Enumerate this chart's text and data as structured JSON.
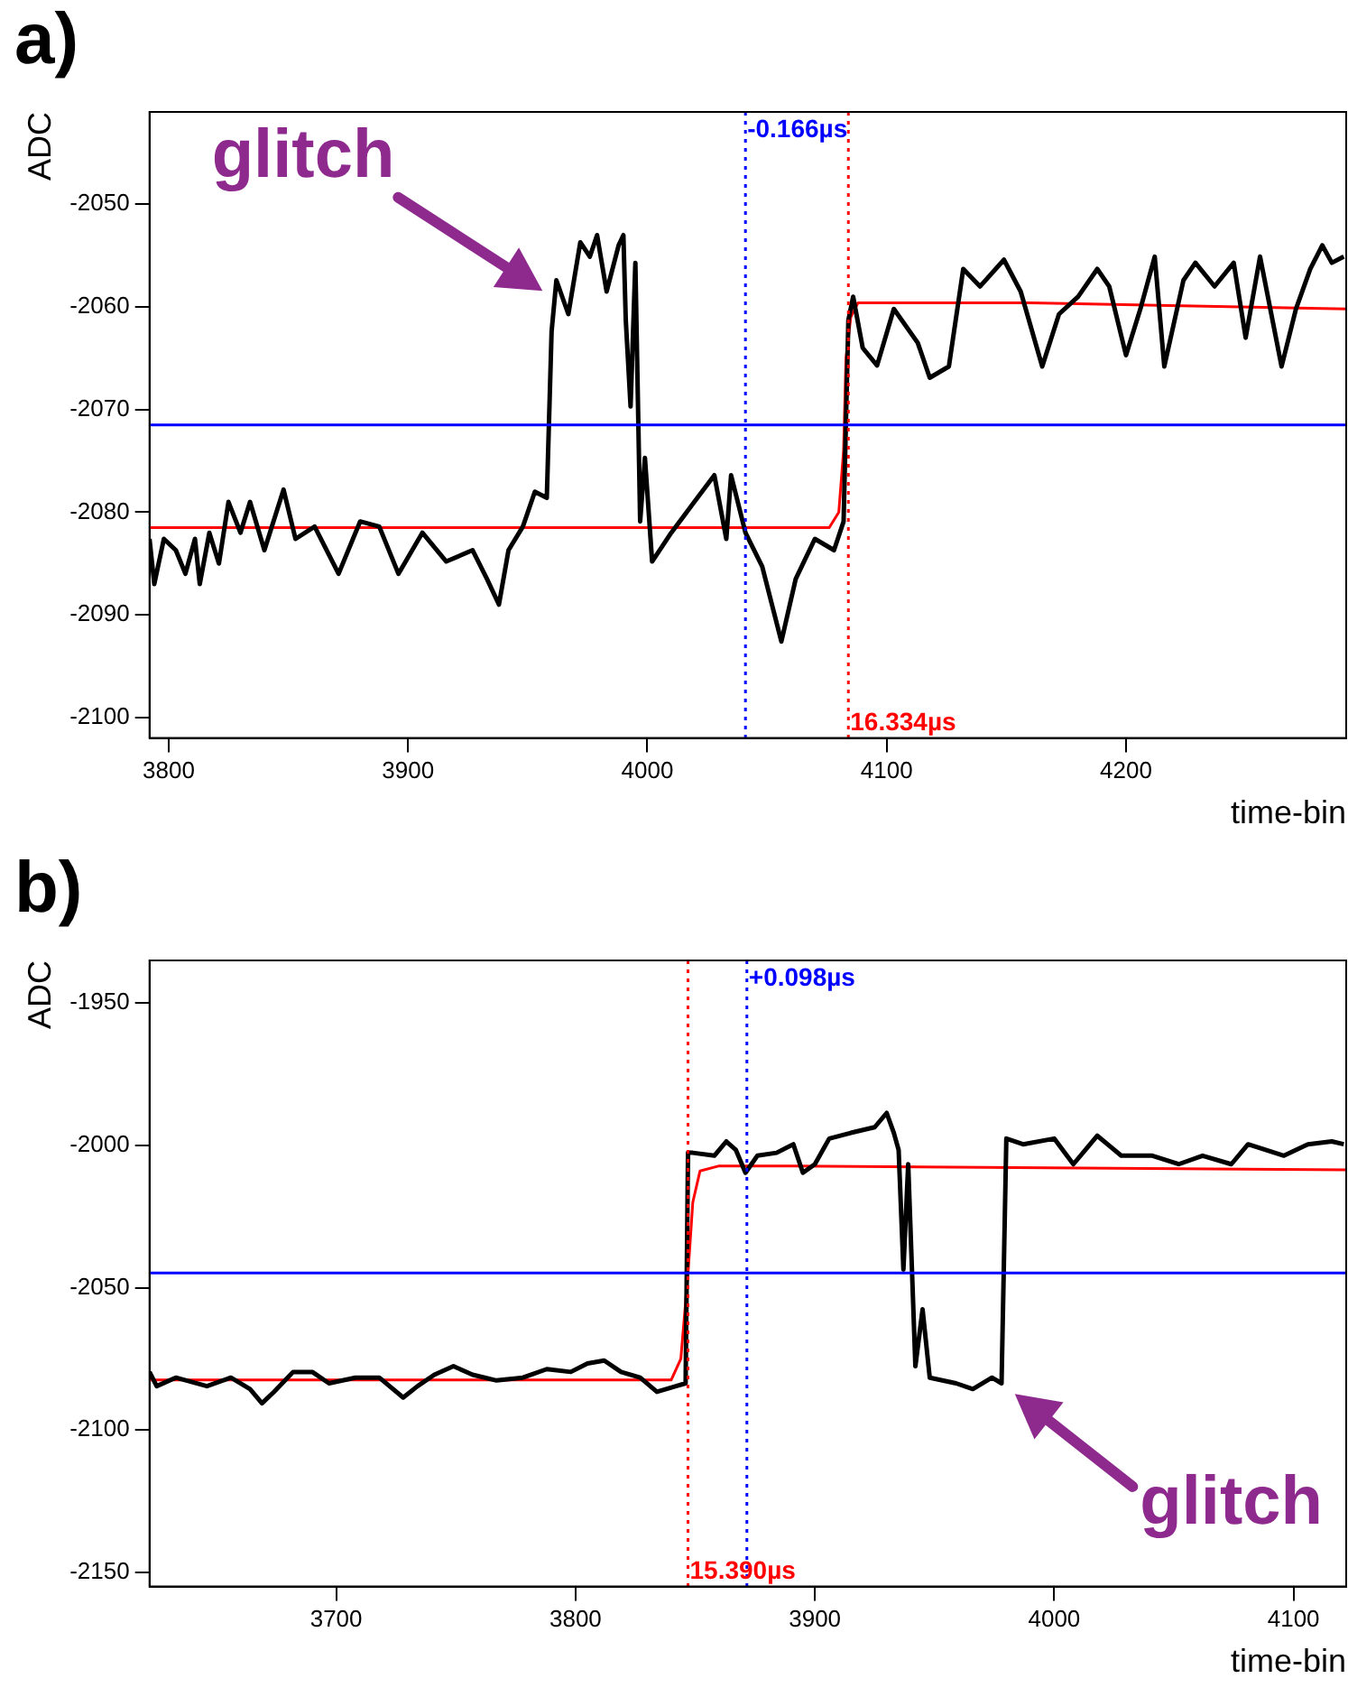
{
  "chart_data": [
    {
      "type": "line",
      "title": "a)",
      "xlabel": "time-bin",
      "ylabel": "ADC",
      "xlim": [
        3792,
        4292
      ],
      "ylim": [
        -2102,
        -2041
      ],
      "xticks": [
        3800,
        3900,
        4000,
        4100,
        4200
      ],
      "yticks": [
        -2050,
        -2060,
        -2070,
        -2080,
        -2090,
        -2100
      ],
      "grid": false,
      "legend": false,
      "marker": "none",
      "series": [
        {
          "color": "#000000",
          "x": [
            3792,
            3794,
            3798,
            3803,
            3807,
            3811,
            3813,
            3817,
            3821,
            3825,
            3830,
            3834,
            3840,
            3848,
            3853,
            3861,
            3871,
            3880,
            3888,
            3896,
            3906,
            3916,
            3927,
            3933,
            3938,
            3942,
            3948,
            3953,
            3958,
            3960,
            3962,
            3967,
            3972,
            3976,
            3979,
            3983,
            3988,
            3990,
            3991,
            3993,
            3995,
            3997,
            3999,
            4002,
            4010,
            4019,
            4028,
            4033,
            4035,
            4041,
            4048,
            4056,
            4062,
            4070,
            4078,
            4082,
            4084,
            4086,
            4090,
            4096,
            4103,
            4113,
            4118,
            4126,
            4132,
            4139,
            4149,
            4156,
            4165,
            4172,
            4180,
            4188,
            4193,
            4200,
            4206,
            4212,
            4216,
            4224,
            4229,
            4237,
            4245,
            4250,
            4256,
            4265,
            4271,
            4277,
            4282,
            4286,
            4291
          ],
          "values": [
            -2082.6,
            -2087,
            -2082.6,
            -2083.7,
            -2086,
            -2082.6,
            -2087,
            -2082,
            -2085,
            -2079,
            -2082,
            -2079,
            -2083.7,
            -2077.8,
            -2082.6,
            -2081.4,
            -2086,
            -2080.9,
            -2081.4,
            -2086,
            -2082,
            -2084.8,
            -2083.7,
            -2086.5,
            -2089,
            -2083.7,
            -2081.4,
            -2078,
            -2078.6,
            -2062.4,
            -2057.4,
            -2060.7,
            -2053.7,
            -2055.1,
            -2053,
            -2058.5,
            -2054,
            -2053,
            -2061.3,
            -2069.7,
            -2055.7,
            -2080.9,
            -2074.7,
            -2084.8,
            -2082,
            -2079.2,
            -2076.4,
            -2082.6,
            -2076.4,
            -2082,
            -2085.3,
            -2092.6,
            -2086.5,
            -2082.6,
            -2083.7,
            -2080.9,
            -2061.3,
            -2059,
            -2064,
            -2065.7,
            -2060.2,
            -2063.5,
            -2066.9,
            -2065.8,
            -2056.3,
            -2058,
            -2055.4,
            -2058.5,
            -2065.8,
            -2060.7,
            -2059,
            -2056.3,
            -2058,
            -2064.7,
            -2060.2,
            -2055.1,
            -2065.8,
            -2057.4,
            -2055.7,
            -2058,
            -2055.7,
            -2063,
            -2055.1,
            -2065.8,
            -2060.2,
            -2056.3,
            -2054,
            -2055.7,
            -2055.1
          ]
        },
        {
          "color": "#ff0000",
          "x": [
            3792,
            4076,
            4080,
            4082,
            4083,
            4085,
            4088,
            4160,
            4292
          ],
          "values": [
            -2081.5,
            -2081.5,
            -2080,
            -2074,
            -2065,
            -2061,
            -2059.6,
            -2059.6,
            -2060.2
          ]
        }
      ],
      "ref_lines": [
        {
          "axis": "x",
          "value": 4041,
          "label": "-0.166µs",
          "color": "#0000ff",
          "line_style": "dotted"
        },
        {
          "axis": "x",
          "value": 4084,
          "label": "16.334µs",
          "color": "#ff0000",
          "line_style": "dotted"
        },
        {
          "axis": "y",
          "value": -2071.5,
          "color": "#0000ff",
          "line_style": "solid"
        }
      ],
      "annotations": [
        {
          "text": "glitch",
          "x": 3960,
          "y": -2059
        }
      ]
    },
    {
      "type": "line",
      "title": "b)",
      "xlabel": "time-bin",
      "ylabel": "ADC",
      "xlim": [
        3622,
        4122
      ],
      "ylim": [
        -2155,
        -1935
      ],
      "xticks": [
        3700,
        3800,
        3900,
        4000,
        4100
      ],
      "yticks": [
        -1950,
        -2000,
        -2050,
        -2100,
        -2150
      ],
      "grid": false,
      "legend": false,
      "marker": "none",
      "series": [
        {
          "color": "#000000",
          "x": [
            3622,
            3625,
            3633,
            3646,
            3656,
            3664,
            3669,
            3674,
            3682,
            3690,
            3697,
            3708,
            3718,
            3728,
            3734,
            3741,
            3749,
            3757,
            3767,
            3778,
            3788,
            3798,
            3805,
            3812,
            3819,
            3827,
            3834,
            3842,
            3846,
            3847,
            3849,
            3858,
            3863,
            3867,
            3871,
            3876,
            3884,
            3891,
            3895,
            3900,
            3906,
            3915,
            3925,
            3930,
            3933,
            3935,
            3937,
            3939,
            3942,
            3945,
            3948,
            3959,
            3966,
            3974,
            3978,
            3980,
            3987,
            4000,
            4008,
            4018,
            4028,
            4041,
            4052,
            4062,
            4074,
            4081,
            4096,
            4106,
            4116,
            4121
          ],
          "values": [
            -2079.6,
            -2084.6,
            -2081.6,
            -2084.6,
            -2081.6,
            -2085.6,
            -2090.6,
            -2086.6,
            -2079.6,
            -2079.6,
            -2083.6,
            -2081.6,
            -2081.6,
            -2088.6,
            -2084.6,
            -2080.6,
            -2077.6,
            -2080.6,
            -2082.6,
            -2081.6,
            -2078.6,
            -2079.6,
            -2076.6,
            -2075.6,
            -2079.6,
            -2081.6,
            -2086.6,
            -2084.6,
            -2083.6,
            -2002.6,
            -2002.6,
            -2003.6,
            -1998.6,
            -2001.6,
            -2009.6,
            -2003.6,
            -2002.6,
            -1999.6,
            -2009.6,
            -2006.6,
            -1997.6,
            -1995.6,
            -1993.6,
            -1988.6,
            -1995.6,
            -2001.6,
            -2043.6,
            -2006.6,
            -2077.6,
            -2057.6,
            -2081.6,
            -2083.6,
            -2085.6,
            -2081.6,
            -2083.6,
            -1997.6,
            -1999.6,
            -1997.6,
            -2006.6,
            -1996.6,
            -2003.6,
            -2003.6,
            -2006.6,
            -2003.6,
            -2006.6,
            -1999.6,
            -2003.6,
            -1999.6,
            -1998.6,
            -1999.6
          ]
        },
        {
          "color": "#ff0000",
          "x": [
            3622,
            3840,
            3844,
            3847,
            3849,
            3852,
            3860,
            3890,
            4122
          ],
          "values": [
            -2082.4,
            -2082.4,
            -2075,
            -2045,
            -2020,
            -2009,
            -2007.2,
            -2007.2,
            -2008.6
          ]
        }
      ],
      "ref_lines": [
        {
          "axis": "x",
          "value": 3871.6,
          "label": "+0.098µs",
          "color": "#0000ff",
          "line_style": "dotted"
        },
        {
          "axis": "x",
          "value": 3847,
          "label": "15.390µs",
          "color": "#ff0000",
          "line_style": "dotted"
        },
        {
          "axis": "y",
          "value": -2044.8,
          "color": "#0000ff",
          "line_style": "solid"
        }
      ],
      "annotations": [
        {
          "text": "glitch",
          "x": 3980,
          "y": -2085
        }
      ]
    }
  ]
}
